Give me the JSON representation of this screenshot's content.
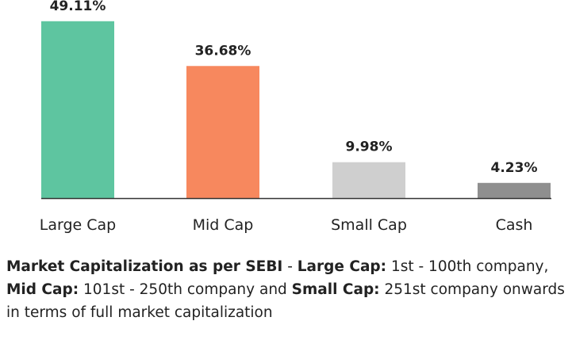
{
  "chart_data": {
    "type": "bar",
    "categories": [
      "Large Cap",
      "Mid Cap",
      "Small Cap",
      "Cash"
    ],
    "values": [
      49.11,
      36.68,
      9.98,
      4.23
    ],
    "value_labels": [
      "49.11%",
      "36.68%",
      "9.98%",
      "4.23%"
    ],
    "colors": [
      "#5ec5a0",
      "#f7885e",
      "#cfcfcf",
      "#8f8f8f"
    ],
    "baseline_color": "#333333",
    "title": "",
    "xlabel": "",
    "ylabel": "",
    "ylim": [
      0,
      55
    ],
    "grid": false,
    "legend": "none"
  },
  "footnote": {
    "lead_bold": "Market Capitalization as per SEBI",
    "lead_sep": " - ",
    "large_cap_label": "Large Cap:",
    "large_cap_text": " 1st - 100th company, ",
    "mid_cap_label": "Mid Cap:",
    "mid_cap_text": " 101st - 250th company and ",
    "small_cap_label": "Small Cap:",
    "small_cap_text": " 251st company onwards in terms of full market capitalization"
  }
}
